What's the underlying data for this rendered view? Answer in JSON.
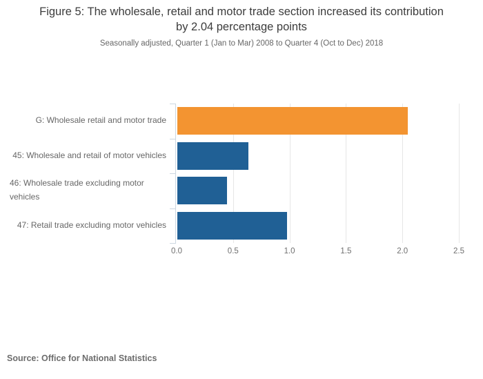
{
  "header": {
    "title": "Figure 5: The wholesale, retail and motor trade section increased its contribution by 2.04 percentage points",
    "subtitle": "Seasonally adjusted, Quarter 1 (Jan to Mar) 2008 to Quarter 4 (Oct to Dec) 2018"
  },
  "footer": {
    "source": "Source: Office for National Statistics"
  },
  "chart_data": {
    "type": "bar",
    "orientation": "horizontal",
    "title": "Figure 5: The wholesale, retail and motor trade section increased its contribution by 2.04 percentage points",
    "subtitle": "Seasonally adjusted, Quarter 1 (Jan to Mar) 2008 to Quarter 4 (Oct to Dec) 2018",
    "categories": [
      "G: Wholesale retail and motor trade",
      "45: Wholesale and retail of motor vehicles",
      "46: Wholesale trade excluding motor vehicles",
      "47: Retail trade excluding motor vehicles"
    ],
    "values": [
      2.04,
      0.63,
      0.44,
      0.97
    ],
    "bar_colors": [
      "#f39431",
      "#206095",
      "#206095",
      "#206095"
    ],
    "xlabel": "",
    "ylabel": "",
    "xlim": [
      0,
      2.5
    ],
    "x_ticks": [
      "0.0",
      "0.5",
      "1.0",
      "1.5",
      "2.0",
      "2.5"
    ],
    "grid": true,
    "legend": "none"
  },
  "colors": {
    "accent_orange": "#f39431",
    "accent_blue": "#206095",
    "gridline": "#e6e6e6",
    "axis_line": "#ccd7e1"
  }
}
